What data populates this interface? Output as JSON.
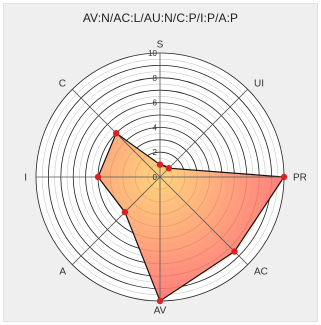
{
  "chart_data": {
    "type": "radar",
    "title": "AV:N/AC:L/AU:N/C:P/I:P/A:P",
    "axes": [
      "S",
      "UI",
      "PR",
      "AC",
      "AV",
      "A",
      "I",
      "C"
    ],
    "values": [
      1,
      1,
      10,
      8.5,
      10,
      4,
      5,
      5
    ],
    "radial_ticks": [
      "0",
      "2",
      "4",
      "6",
      "8",
      "10"
    ],
    "r_range": [
      0,
      10
    ],
    "grid": true,
    "colors": {
      "fill_outer": "#ff6f6f",
      "fill_inner": "#ffd070",
      "stroke": "#111111",
      "marker": "#e02020"
    }
  }
}
